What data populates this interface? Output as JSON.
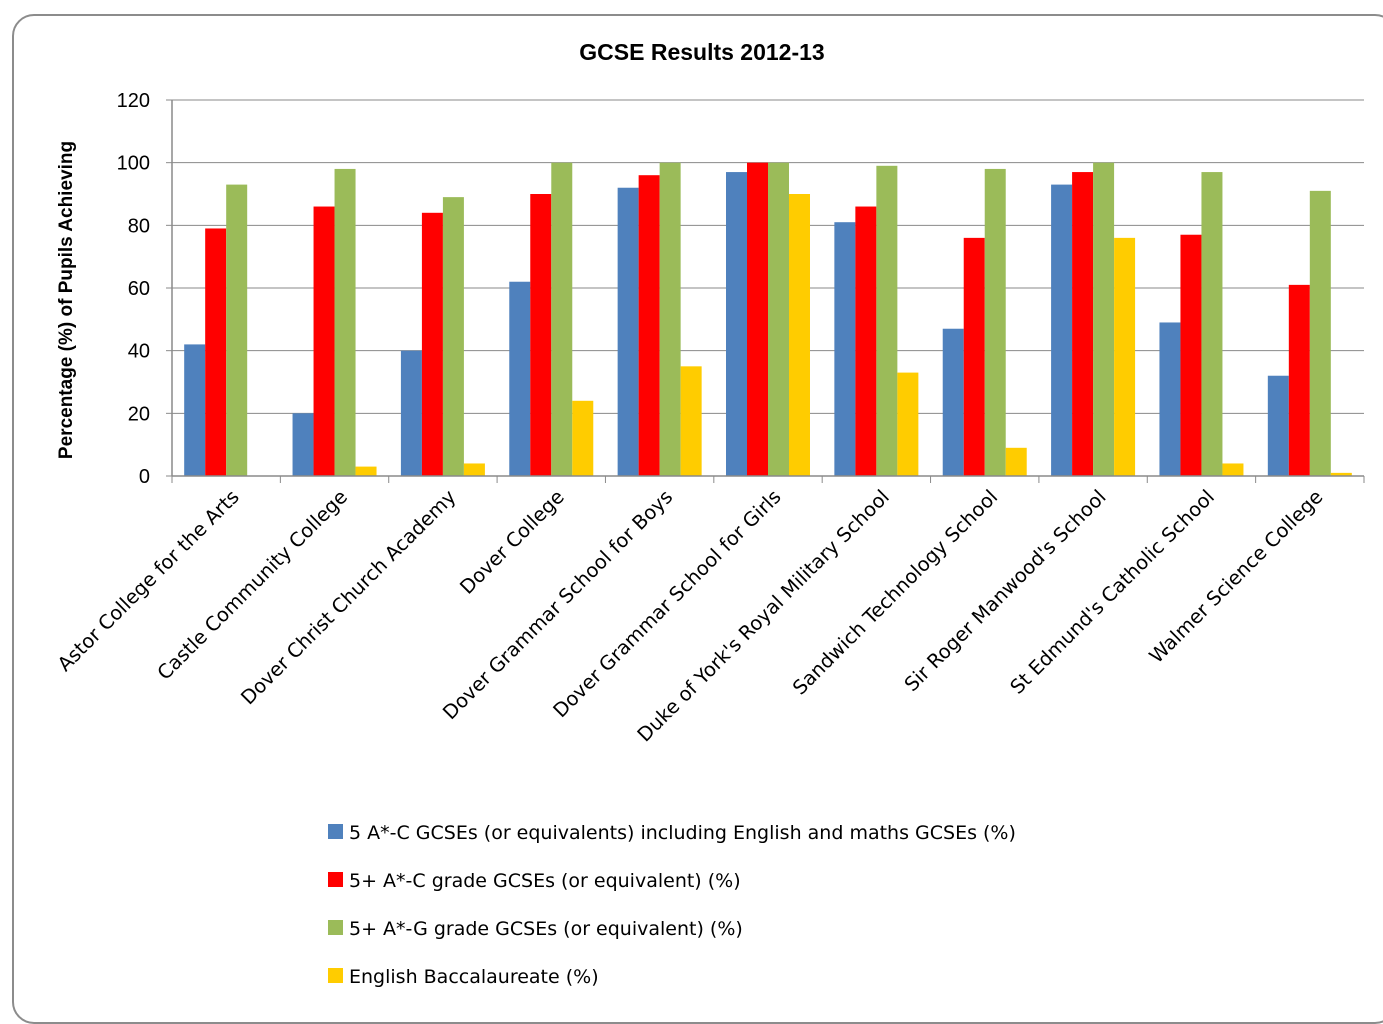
{
  "chart_data": {
    "type": "bar",
    "title": "GCSE Results 2012-13",
    "xlabel": "",
    "ylabel": "Percentage (%) of Pupils Achieving",
    "ylim": [
      0,
      120
    ],
    "yticks": [
      0,
      20,
      40,
      60,
      80,
      100,
      120
    ],
    "grid": true,
    "legend_position": "bottom",
    "categories": [
      "Astor College for the Arts",
      "Castle Community College",
      "Dover Christ Church Academy",
      "Dover College",
      "Dover Grammar School for Boys",
      "Dover Grammar School for Girls",
      "Duke of York's Royal Military School",
      "Sandwich Technology School",
      "Sir Roger Manwood's School",
      "St Edmund's Catholic School",
      "Walmer Science College"
    ],
    "series": [
      {
        "name": "5 A*-C GCSEs (or equivalents) including English and maths GCSEs (%)",
        "color": "#4f81bd",
        "values": [
          42,
          20,
          40,
          62,
          92,
          97,
          81,
          47,
          93,
          49,
          32
        ]
      },
      {
        "name": "5+ A*-C grade GCSEs (or equivalent) (%)",
        "color": "#ff0000",
        "values": [
          79,
          86,
          84,
          90,
          96,
          100,
          86,
          76,
          97,
          77,
          61
        ]
      },
      {
        "name": "5+ A*-G grade GCSEs (or equivalent) (%)",
        "color": "#9bbb59",
        "values": [
          93,
          98,
          89,
          100,
          100,
          100,
          99,
          98,
          100,
          97,
          91
        ]
      },
      {
        "name": "English Baccalaureate (%)",
        "color": "#ffcc00",
        "values": [
          0,
          3,
          4,
          24,
          35,
          90,
          33,
          9,
          76,
          4,
          1
        ]
      }
    ]
  }
}
